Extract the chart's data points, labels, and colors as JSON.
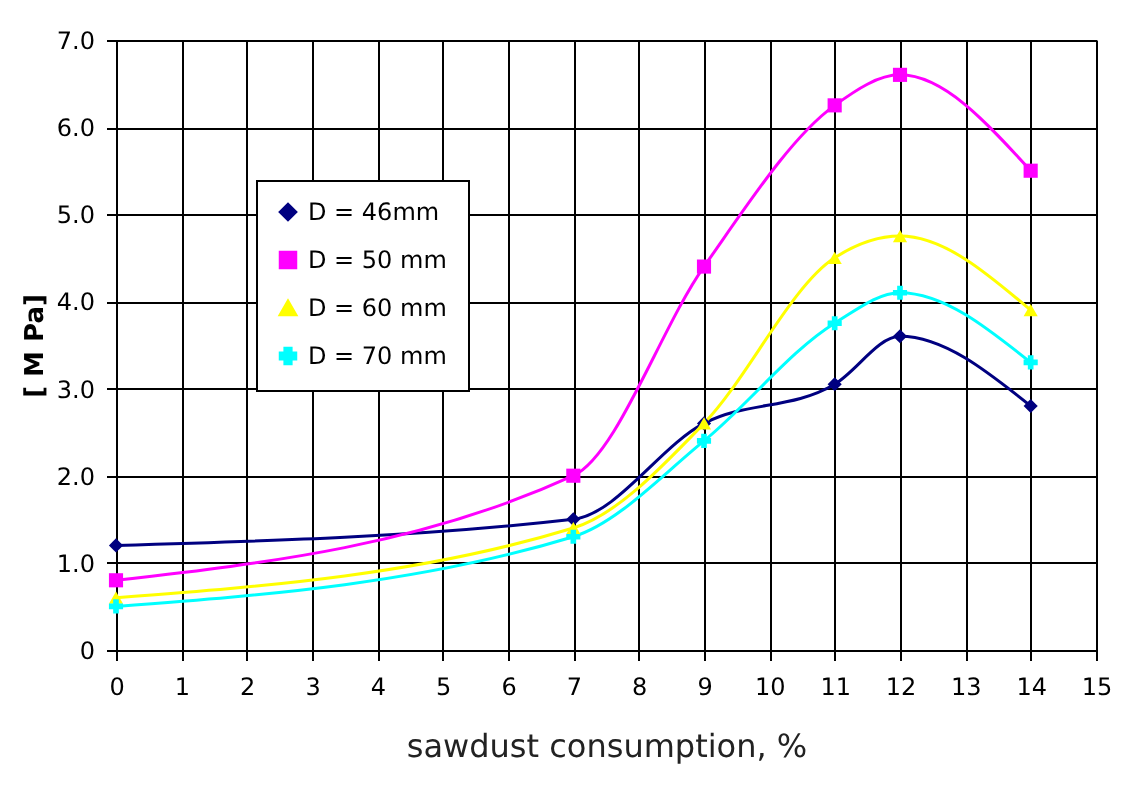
{
  "chart_data": {
    "type": "line",
    "xlabel": "sawdust consumption, %",
    "ylabel": "[ M Pa]",
    "x": [
      0,
      7,
      9,
      11,
      12,
      14
    ],
    "series": [
      {
        "name": "D = 46mm",
        "color": "#000080",
        "marker": "diamond",
        "values": [
          1.2,
          1.5,
          2.6,
          3.05,
          3.6,
          2.8
        ]
      },
      {
        "name": "D = 50 mm",
        "color": "#ff00ff",
        "marker": "square",
        "values": [
          0.8,
          2.0,
          4.4,
          6.25,
          6.6,
          5.5
        ]
      },
      {
        "name": "D = 60 mm",
        "color": "#ffff00",
        "marker": "triangle",
        "values": [
          0.6,
          1.4,
          2.6,
          4.5,
          4.75,
          3.9
        ]
      },
      {
        "name": "D = 70 mm",
        "color": "#00ffff",
        "marker": "cross",
        "values": [
          0.5,
          1.3,
          2.4,
          3.75,
          4.1,
          3.3
        ]
      }
    ],
    "xlim": [
      0,
      15
    ],
    "xticks": [
      0,
      1,
      2,
      3,
      4,
      5,
      6,
      7,
      8,
      9,
      10,
      11,
      12,
      13,
      14,
      15
    ],
    "ylim": [
      0,
      7
    ],
    "yticks": [
      0,
      {
        "value": 1,
        "label": "1.0"
      },
      {
        "value": 2,
        "label": "2.0"
      },
      {
        "value": 3,
        "label": "3.0"
      },
      {
        "value": 4,
        "label": "4.0"
      },
      {
        "value": 5,
        "label": "5.0"
      },
      {
        "value": 6,
        "label": "6.0"
      },
      {
        "value": 7,
        "label": "7.0"
      }
    ],
    "grid": true,
    "legend": "top left",
    "line_style": "solid"
  }
}
